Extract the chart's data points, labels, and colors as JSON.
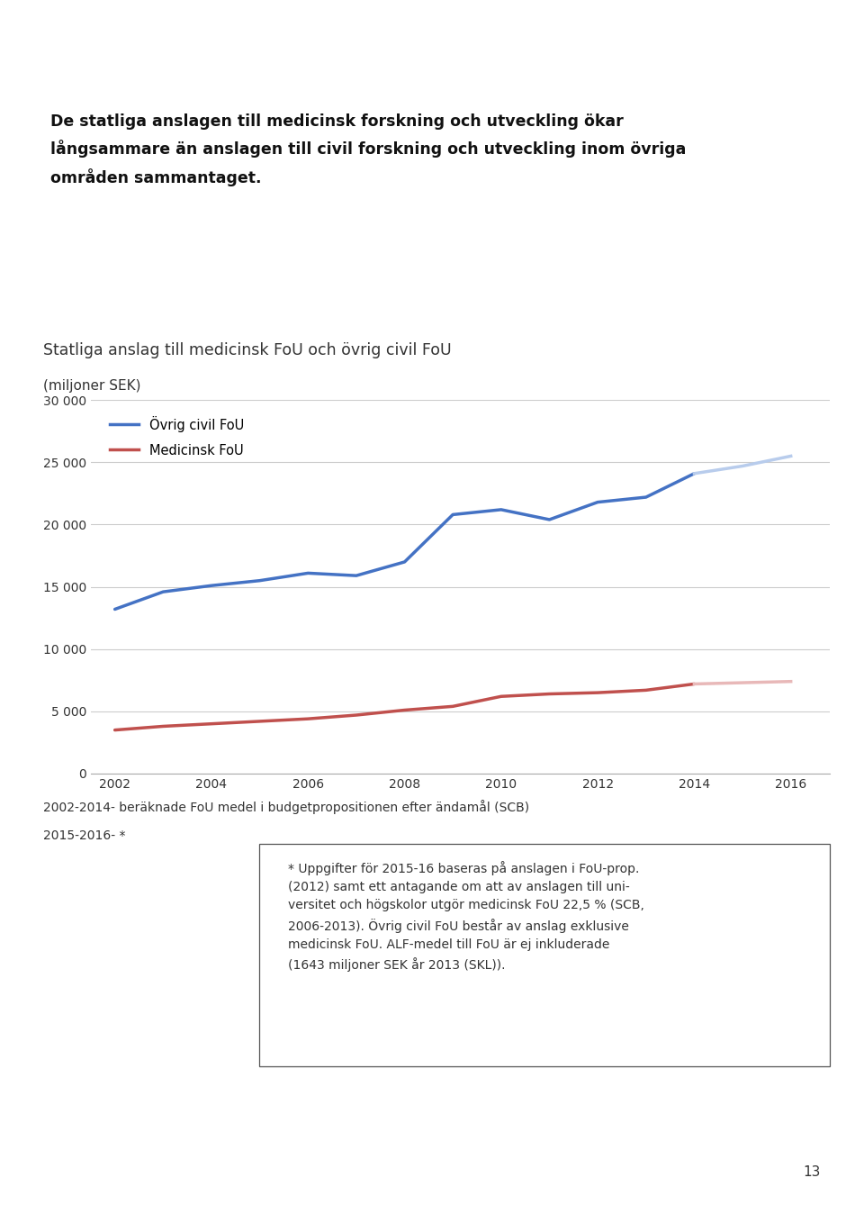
{
  "page_bg": "#ffffff",
  "header_color_blue": "#1e5799",
  "header_color_yellow": "#f5c518",
  "footer_color_blue": "#1e5799",
  "footer_color_yellow": "#f5c518",
  "quote_box_color": "#fafae0",
  "quote_text": "De statliga anslagen till medicinsk forskning och utveckling ökar\nlångsammare än anslagen till civil forskning och utveckling inom övriga\nområden sammantaget.",
  "chart_title": "Statliga anslag till medicinsk FoU och övrig civil FoU",
  "chart_ylabel": "(miljoner SEK)",
  "years_solid": [
    2002,
    2003,
    2004,
    2005,
    2006,
    2007,
    2008,
    2009,
    2010,
    2011,
    2012,
    2013,
    2014
  ],
  "years_dashed": [
    2014,
    2015,
    2016
  ],
  "ovrig_solid": [
    13200,
    14600,
    15100,
    15500,
    16100,
    15900,
    17000,
    20800,
    21200,
    20400,
    21800,
    22200,
    24100
  ],
  "ovrig_dashed": [
    24100,
    24700,
    25500
  ],
  "medicinsk_solid": [
    3500,
    3800,
    4000,
    4200,
    4400,
    4700,
    5100,
    5400,
    6200,
    6400,
    6500,
    6700,
    7200
  ],
  "medicinsk_dashed": [
    7200,
    7300,
    7400
  ],
  "ovrig_color": "#4472c4",
  "medicinsk_color": "#c0504d",
  "ovrig_dashed_color": "#b8ccec",
  "medicinsk_dashed_color": "#e8b8b8",
  "ylim": [
    0,
    30000
  ],
  "yticks": [
    0,
    5000,
    10000,
    15000,
    20000,
    25000,
    30000
  ],
  "ytick_labels": [
    "0",
    "5 000",
    "10 000",
    "15 000",
    "20 000",
    "25 000",
    "30 000"
  ],
  "xticks": [
    2002,
    2004,
    2006,
    2008,
    2010,
    2012,
    2014,
    2016
  ],
  "note_line1": "2002-2014- beräknade FoU medel i budgetpropositionen efter ändamål (SCB)",
  "note_line2": "2015-2016- *",
  "footnote_text": "* Uppgifter för 2015-16 baseras på anslagen i FoU-prop.\n(2012) samt ett antagande om att av anslagen till uni-\nversitet och högskolor utgör medicinsk FoU 22,5 % (SCB,\n2006-2013). Övrig civil FoU består av anslag exklusive\nmedicinsk FoU. ALF-medel till FoU är ej inkluderade\n(1643 miljoner SEK år 2013 (SKL)).",
  "page_number": "13",
  "legend_ovrig": "Övrig civil FoU",
  "legend_medicinsk": "Medicinsk FoU"
}
